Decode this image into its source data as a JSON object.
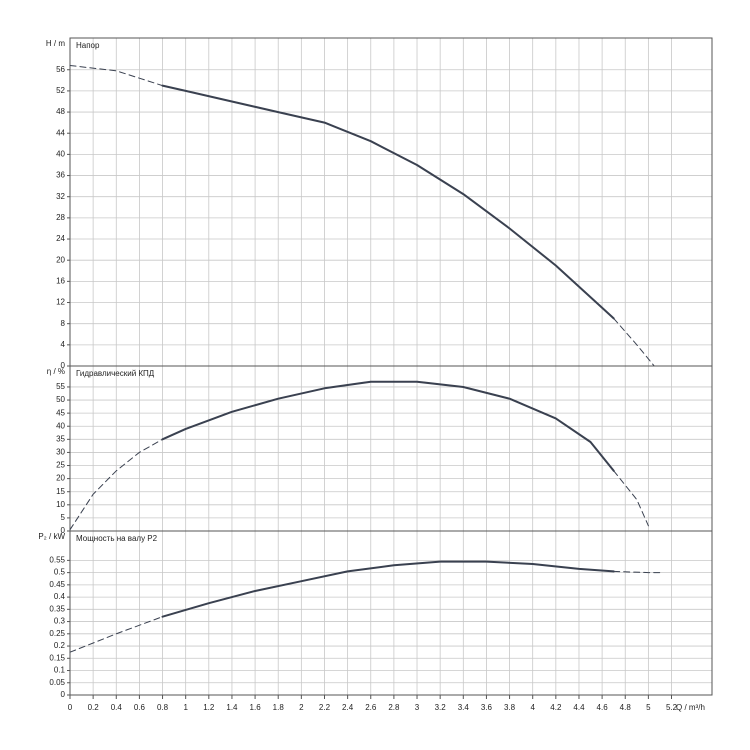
{
  "chart_data": {
    "type": "line",
    "color": "#3a4150",
    "grid": true,
    "xlabel": "Q / m³/h",
    "xlim": [
      0,
      5.55
    ],
    "xticks": [
      0,
      0.2,
      0.4,
      0.6,
      0.8,
      1,
      1.2,
      1.4,
      1.6,
      1.8,
      2,
      2.2,
      2.4,
      2.6,
      2.8,
      3,
      3.2,
      3.4,
      3.6,
      3.8,
      4,
      4.2,
      4.4,
      4.6,
      4.8,
      5,
      5.2
    ],
    "panels": [
      {
        "ylabel": "H / m",
        "title": "Напор",
        "ylim": [
          0,
          62
        ],
        "yticks": [
          0,
          4,
          8,
          12,
          16,
          20,
          24,
          28,
          32,
          36,
          40,
          44,
          48,
          52,
          56
        ],
        "curves": [
          {
            "style": "dashed",
            "x": [
              0,
              0.4,
              0.8
            ],
            "values": [
              56.8,
              55.8,
              53
            ]
          },
          {
            "style": "solid",
            "x": [
              0.8,
              1,
              1.4,
              1.8,
              2.2,
              2.6,
              3,
              3.4,
              3.8,
              4.2,
              4.6,
              4.7
            ],
            "values": [
              53,
              52,
              50,
              48,
              46,
              42.5,
              38,
              32.5,
              26,
              19,
              11,
              9
            ]
          },
          {
            "style": "dashed",
            "x": [
              4.7,
              4.9,
              5.05
            ],
            "values": [
              9,
              4,
              0
            ]
          }
        ]
      },
      {
        "ylabel": "η / %",
        "title": "Гидравлический КПД",
        "ylim": [
          0,
          63
        ],
        "yticks": [
          0,
          5,
          10,
          15,
          20,
          25,
          30,
          35,
          40,
          45,
          50,
          55
        ],
        "curves": [
          {
            "style": "dashed",
            "x": [
              0,
              0.2,
              0.4,
              0.6,
              0.8
            ],
            "values": [
              0.5,
              14,
              23,
              30,
              35
            ]
          },
          {
            "style": "solid",
            "x": [
              0.8,
              1,
              1.4,
              1.8,
              2.2,
              2.6,
              3,
              3.4,
              3.8,
              4.2,
              4.5,
              4.7
            ],
            "values": [
              35,
              39,
              45.5,
              50.5,
              54.5,
              57,
              57,
              55,
              50.5,
              43,
              34,
              23
            ]
          },
          {
            "style": "dashed",
            "x": [
              4.7,
              4.9,
              5.0
            ],
            "values": [
              23,
              12,
              2
            ]
          }
        ]
      },
      {
        "ylabel": "P₂ / kW",
        "title": "Мощность на валу P2",
        "ylim": [
          0,
          0.67
        ],
        "yticks": [
          0,
          0.05,
          0.1,
          0.15,
          0.2,
          0.25,
          0.3,
          0.35,
          0.4,
          0.45,
          0.5,
          0.55
        ],
        "curves": [
          {
            "style": "dashed",
            "x": [
              0,
              0.4,
              0.8
            ],
            "values": [
              0.175,
              0.25,
              0.32
            ]
          },
          {
            "style": "solid",
            "x": [
              0.8,
              1.2,
              1.6,
              2,
              2.4,
              2.8,
              3.2,
              3.6,
              4,
              4.4,
              4.7
            ],
            "values": [
              0.32,
              0.375,
              0.425,
              0.465,
              0.505,
              0.53,
              0.545,
              0.545,
              0.535,
              0.515,
              0.505
            ]
          },
          {
            "style": "dashed",
            "x": [
              4.7,
              5,
              5.1
            ],
            "values": [
              0.505,
              0.5,
              0.5
            ]
          }
        ]
      }
    ]
  }
}
